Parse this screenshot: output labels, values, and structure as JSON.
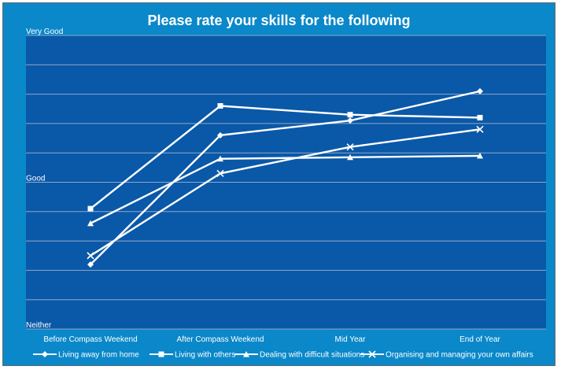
{
  "chart_data": {
    "type": "line",
    "title": "Please rate your skills for the following",
    "categories": [
      "Before Compass Weekend",
      "After Compass Weekend",
      "Mid Year",
      "End of Year"
    ],
    "y_tick_labels": [
      "Neither",
      "Good",
      "Very Good"
    ],
    "ylim": [
      0,
      10
    ],
    "y_label_values": [
      0,
      5,
      10
    ],
    "grid": true,
    "legend_position": "bottom",
    "series": [
      {
        "name": "Living away from home",
        "marker": "diamond",
        "values": [
          2.2,
          6.6,
          7.1,
          8.1
        ]
      },
      {
        "name": "Living with others",
        "marker": "square",
        "values": [
          4.1,
          7.6,
          7.3,
          7.2
        ]
      },
      {
        "name": "Dealing with difficult situations",
        "marker": "triangle",
        "values": [
          3.6,
          5.8,
          5.85,
          5.9
        ]
      },
      {
        "name": "Organising and managing your own affairs",
        "marker": "x",
        "values": [
          2.5,
          5.3,
          6.2,
          6.8
        ]
      }
    ],
    "colors": {
      "plot_background": "#0a58a8",
      "frame_background": "#0a88c9",
      "line": "#ffffff",
      "gridline": "#8fa7c7"
    }
  }
}
